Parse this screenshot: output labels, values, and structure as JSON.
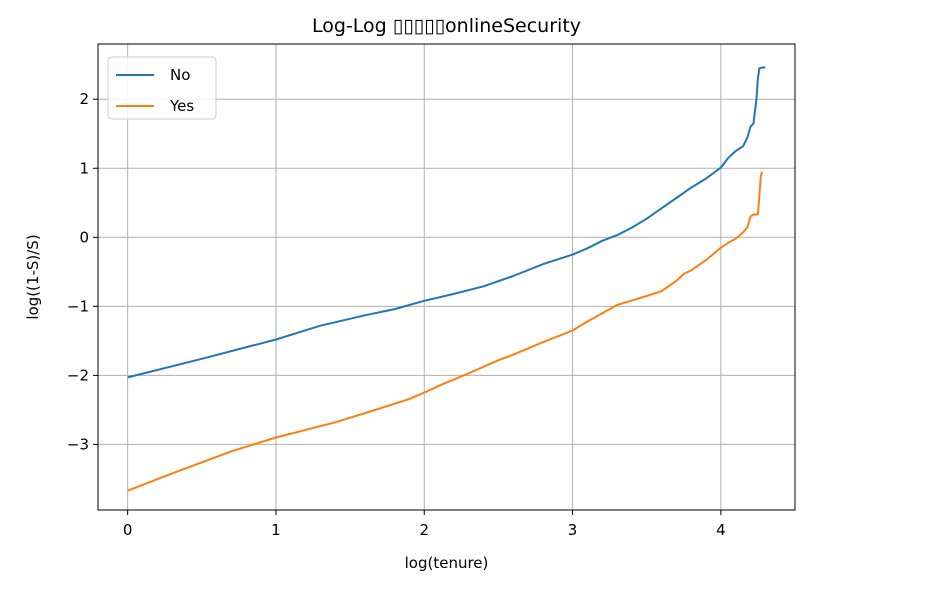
{
  "chart_data": {
    "type": "line",
    "title": "Log-Log ▯▯▯▯▯onlineSecurity",
    "xlabel": "log(tenure)",
    "ylabel": "log((1-S)/S)",
    "xlim": [
      -0.2,
      4.5
    ],
    "ylim": [
      -3.95,
      2.8
    ],
    "xticks": [
      0,
      1,
      2,
      3,
      4
    ],
    "yticks": [
      -3,
      -2,
      -1,
      0,
      1,
      2
    ],
    "xtick_labels": [
      "0",
      "1",
      "2",
      "3",
      "4"
    ],
    "ytick_labels": [
      "−3",
      "−2",
      "−1",
      "0",
      "1",
      "2"
    ],
    "grid": true,
    "legend_position": "top-left",
    "series": [
      {
        "name": "No",
        "color": "#1f77b4",
        "x": [
          0,
          0.5,
          1.0,
          1.3,
          1.6,
          1.8,
          2.0,
          2.2,
          2.4,
          2.6,
          2.8,
          3.0,
          3.1,
          3.2,
          3.3,
          3.4,
          3.5,
          3.6,
          3.7,
          3.8,
          3.9,
          4.0,
          4.05,
          4.1,
          4.15,
          4.18,
          4.2,
          4.22,
          4.24,
          4.25,
          4.26,
          4.28,
          4.3
        ],
        "y": [
          -2.03,
          -1.76,
          -1.48,
          -1.28,
          -1.13,
          -1.04,
          -0.92,
          -0.82,
          -0.71,
          -0.56,
          -0.39,
          -0.25,
          -0.16,
          -0.05,
          0.03,
          0.14,
          0.27,
          0.42,
          0.57,
          0.72,
          0.85,
          1.01,
          1.15,
          1.25,
          1.32,
          1.45,
          1.6,
          1.65,
          2.0,
          2.3,
          2.45,
          2.46,
          2.46
        ]
      },
      {
        "name": "Yes",
        "color": "#ff7f0e",
        "x": [
          0,
          0.3,
          0.7,
          1.0,
          1.4,
          1.7,
          1.9,
          2.0,
          2.1,
          2.3,
          2.5,
          2.6,
          2.8,
          3.0,
          3.1,
          3.2,
          3.3,
          3.5,
          3.6,
          3.7,
          3.75,
          3.8,
          3.9,
          4.0,
          4.05,
          4.1,
          4.15,
          4.18,
          4.2,
          4.22,
          4.25,
          4.27,
          4.28
        ],
        "y": [
          -3.67,
          -3.42,
          -3.1,
          -2.9,
          -2.68,
          -2.48,
          -2.34,
          -2.25,
          -2.15,
          -1.97,
          -1.78,
          -1.7,
          -1.52,
          -1.35,
          -1.22,
          -1.1,
          -0.98,
          -0.85,
          -0.78,
          -0.63,
          -0.53,
          -0.48,
          -0.33,
          -0.15,
          -0.08,
          -0.02,
          0.07,
          0.15,
          0.3,
          0.33,
          0.33,
          0.9,
          0.95
        ]
      }
    ]
  }
}
